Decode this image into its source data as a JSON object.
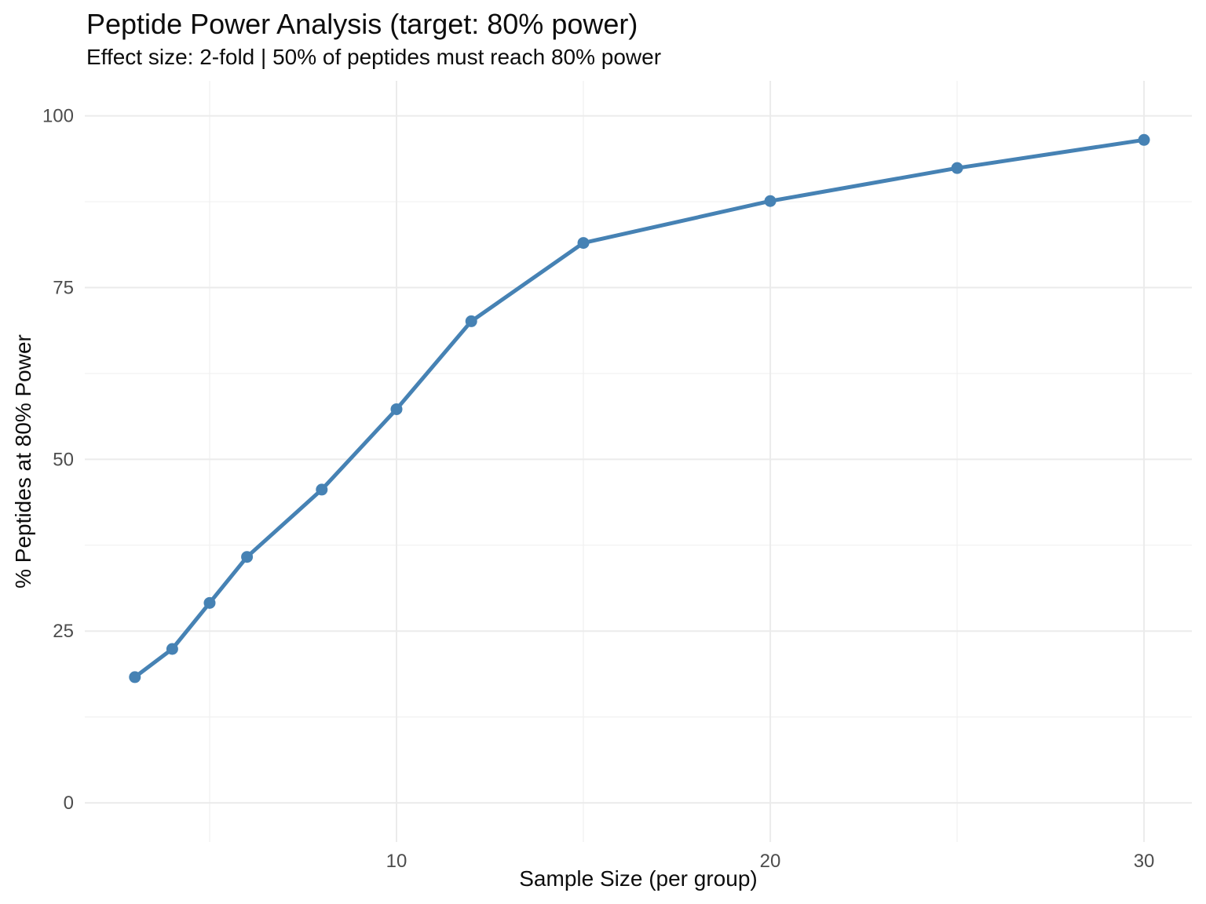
{
  "chart_data": {
    "type": "line",
    "title": "Peptide Power Analysis (target: 80% power)",
    "subtitle": "Effect size: 2-fold | 50% of peptides must reach 80% power",
    "xlabel": "Sample Size (per group)",
    "ylabel": "% Peptides at 80% Power",
    "series": [
      {
        "name": "pct-peptides-at-80pct-power",
        "x": [
          3,
          4,
          5,
          6,
          8,
          10,
          12,
          15,
          20,
          25,
          30
        ],
        "y": [
          18.3,
          22.4,
          29.1,
          35.8,
          45.6,
          57.3,
          70.1,
          81.5,
          87.6,
          92.4,
          96.5
        ]
      }
    ],
    "x_major_ticks": [
      10,
      20,
      30
    ],
    "x_minor_gridlines": [
      5,
      15,
      25
    ],
    "y_major_ticks": [
      0,
      25,
      50,
      75,
      100
    ],
    "y_minor_gridlines": [
      12.5,
      37.5,
      62.5,
      87.5
    ],
    "xlim": [
      1.66,
      31.28
    ],
    "ylim": [
      -5.7,
      105.1
    ],
    "grid": "on",
    "legend": "none",
    "colors": {
      "line": "#4682B4",
      "point": "#4682B4",
      "grid_major": "#EBEBEB",
      "grid_minor": "#F0F0F0",
      "tick_label": "#4D4D4D",
      "text": "#0d0d0d",
      "background": "#FFFFFF"
    }
  }
}
